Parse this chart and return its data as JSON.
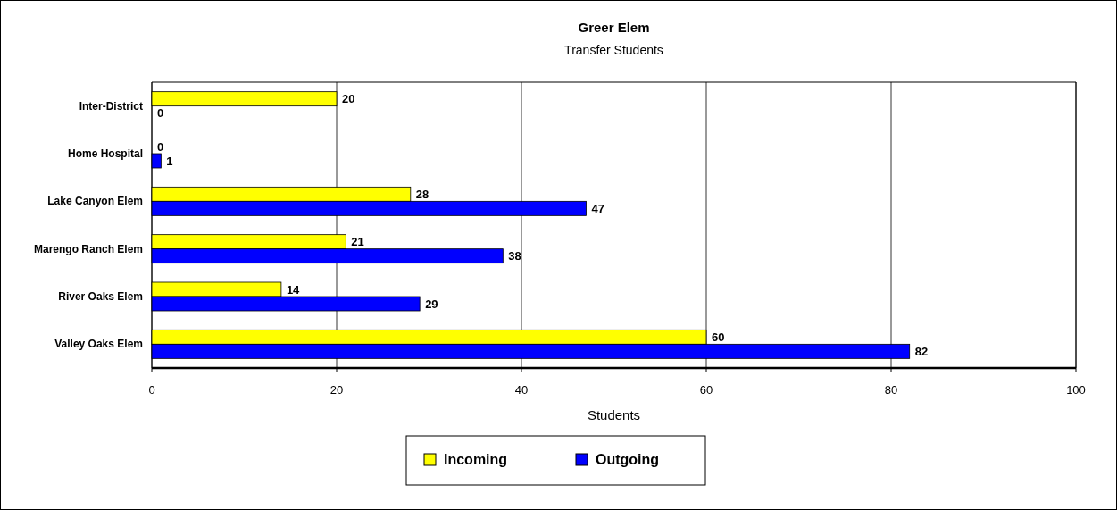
{
  "chart_data": {
    "type": "bar",
    "orientation": "horizontal",
    "title": "Greer Elem",
    "subtitle": "Transfer Students",
    "xlabel": "Students",
    "categories": [
      "Inter-District",
      "Home Hospital",
      "Lake Canyon Elem",
      "Marengo Ranch Elem",
      "River Oaks Elem",
      "Valley Oaks Elem"
    ],
    "series": [
      {
        "name": "Incoming",
        "color": "#ffff00",
        "values": [
          20,
          0,
          28,
          21,
          14,
          60
        ]
      },
      {
        "name": "Outgoing",
        "color": "#0000ff",
        "values": [
          0,
          1,
          47,
          38,
          29,
          82
        ]
      }
    ],
    "xlim": [
      0,
      100
    ],
    "xticks": [
      0,
      20,
      40,
      60,
      80,
      100
    ],
    "grid": "x",
    "legend": "bottom",
    "data_labels": true
  }
}
